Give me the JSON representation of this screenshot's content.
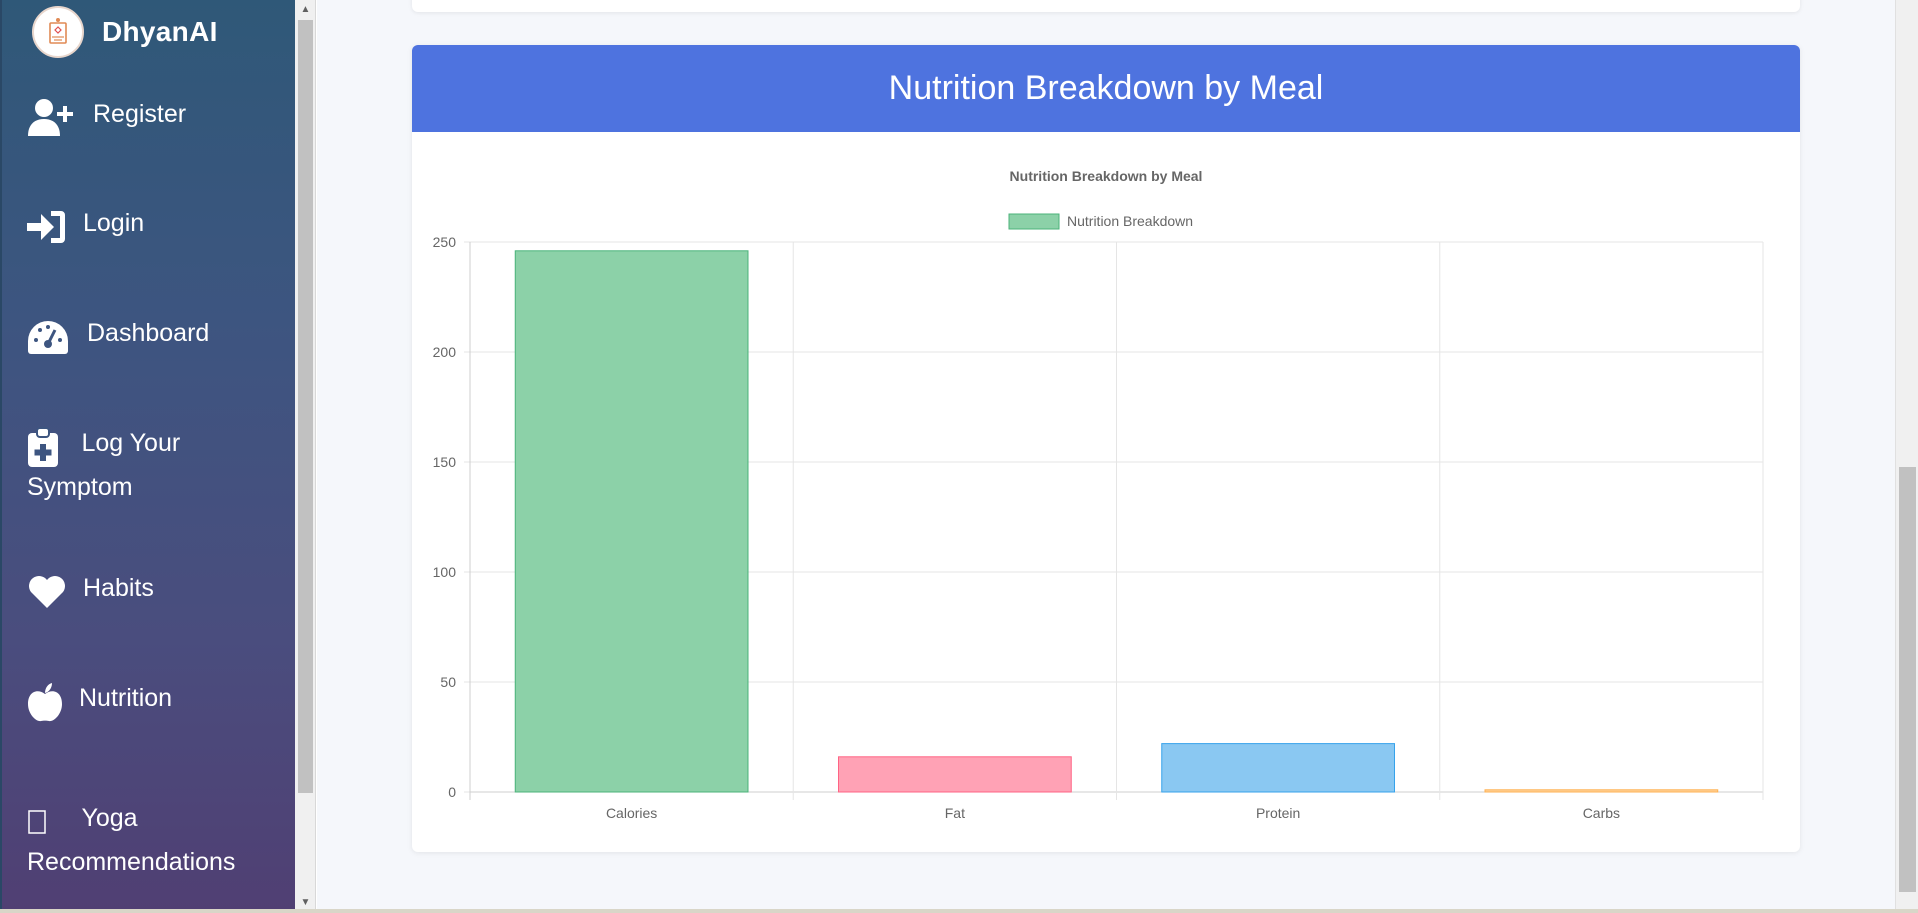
{
  "app": {
    "brand": "DhyanAI"
  },
  "sidebar": {
    "items": [
      {
        "label": "Register",
        "icon": "user-plus-icon"
      },
      {
        "label": "Login",
        "icon": "sign-in-icon"
      },
      {
        "label": "Dashboard",
        "icon": "tachometer-icon"
      },
      {
        "label_line1": "Log Your",
        "label_line2": "Symptom",
        "icon": "clipboard-medical-icon"
      },
      {
        "label": "Habits",
        "icon": "heart-icon"
      },
      {
        "label": "Nutrition",
        "icon": "apple-icon"
      },
      {
        "label_line1": "Yoga",
        "label_line2": "Recommendations",
        "icon": "missing-glyph-icon"
      }
    ]
  },
  "card": {
    "header_title": "Nutrition Breakdown by Meal"
  },
  "chart_data": {
    "type": "bar",
    "title": "Nutrition Breakdown by Meal",
    "legend": [
      "Nutrition Breakdown"
    ],
    "legend_position": "top",
    "categories": [
      "Calories",
      "Fat",
      "Protein",
      "Carbs"
    ],
    "values": [
      246,
      16,
      22,
      1
    ],
    "colors": {
      "fill": [
        "#8cd1a8",
        "#ffa2b5",
        "#8ac8f2",
        "#ffd29a"
      ],
      "stroke": [
        "#4bb37a",
        "#ff6384",
        "#36a2eb",
        "#ffb050"
      ]
    },
    "yticks": [
      0,
      50,
      100,
      150,
      200,
      250
    ],
    "ylim": [
      0,
      250
    ],
    "grid": true,
    "xlabel": "",
    "ylabel": ""
  },
  "colors": {
    "header": "#4e73df",
    "sidebar_top": "#2f5878",
    "sidebar_bottom": "#503f73"
  }
}
